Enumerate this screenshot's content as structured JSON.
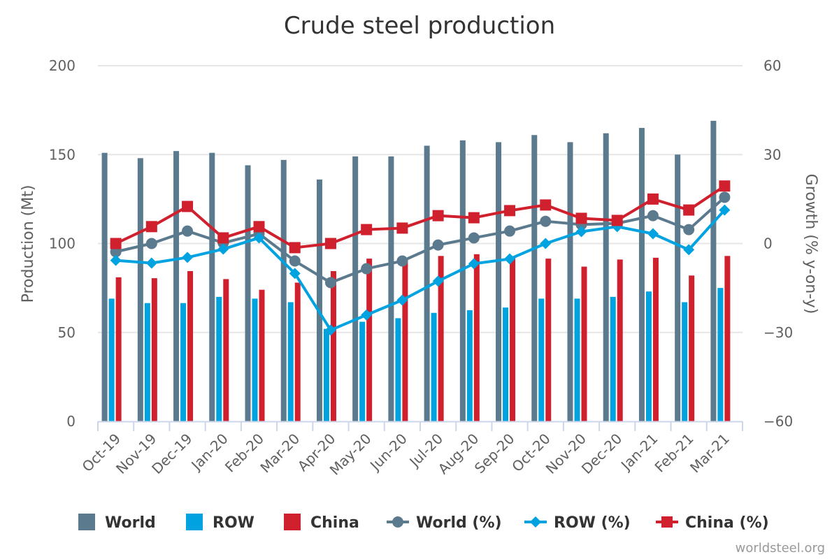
{
  "chart_data": {
    "type": "bar",
    "title": "Crude steel production",
    "xlabel": "",
    "ylabel": "Production (Mt)",
    "ylabel_right": "Growth (% y-on-y)",
    "ylim": [
      0,
      200
    ],
    "ylim_right": [
      -60,
      60
    ],
    "yticks": [
      "0",
      "50",
      "100",
      "150",
      "200"
    ],
    "yticks_right": [
      "−60",
      "−30",
      "0",
      "30",
      "60"
    ],
    "yticks_values": [
      0,
      50,
      100,
      150,
      200
    ],
    "yticks_right_values": [
      -60,
      -30,
      0,
      30,
      60
    ],
    "grid": true,
    "legend_position": "bottom",
    "categories": [
      "Oct-19",
      "Nov-19",
      "Dec-19",
      "Jan-20",
      "Feb-20",
      "Mar-20",
      "Apr-20",
      "May-20",
      "Jun-20",
      "Jul-20",
      "Aug-20",
      "Sep-20",
      "Oct-20",
      "Nov-20",
      "Dec-20",
      "Jan-21",
      "Feb-21",
      "Mar-21"
    ],
    "series": [
      {
        "name": "World",
        "type": "bar",
        "axis": "left",
        "color": "#5c7a8e",
        "values": [
          151,
          148,
          152,
          151,
          144,
          147,
          136,
          149,
          149,
          155,
          158,
          157,
          161,
          157,
          162,
          165,
          150,
          169
        ]
      },
      {
        "name": "ROW",
        "type": "bar",
        "axis": "left",
        "color": "#00a3e0",
        "values": [
          69,
          66.5,
          66.5,
          70,
          69,
          67,
          52,
          56,
          58,
          61,
          62.5,
          64,
          69,
          69,
          70,
          73,
          67,
          75
        ]
      },
      {
        "name": "China",
        "type": "bar",
        "axis": "left",
        "color": "#d0202e",
        "values": [
          81,
          80.5,
          84.5,
          80,
          74,
          78,
          84.5,
          91.5,
          91,
          93,
          94,
          92,
          91.5,
          87,
          91,
          92,
          82,
          93
        ]
      },
      {
        "name": "World (%)",
        "type": "line",
        "axis": "right",
        "color": "#5c7a8e",
        "marker": "circle",
        "values": [
          -2.8,
          0,
          4.2,
          0.2,
          3.3,
          -5.9,
          -13.2,
          -8.5,
          -5.9,
          -0.5,
          1.9,
          4.2,
          7.5,
          6.4,
          6.8,
          9.4,
          4.7,
          15.6
        ]
      },
      {
        "name": "ROW (%)",
        "type": "line",
        "axis": "right",
        "color": "#00a3e0",
        "marker": "diamond",
        "values": [
          -5.7,
          -6.6,
          -4.7,
          -1.9,
          1.9,
          -10.1,
          -29.2,
          -24.1,
          -19.1,
          -12.7,
          -6.8,
          -5.2,
          0,
          4,
          5.7,
          3.3,
          -2.1,
          11.3
        ]
      },
      {
        "name": "China (%)",
        "type": "line",
        "axis": "right",
        "color": "#d0202e",
        "marker": "square",
        "values": [
          0,
          5.7,
          12.5,
          1.9,
          5.7,
          -1.4,
          0,
          4.7,
          5.2,
          9.4,
          8.7,
          11.1,
          13,
          8.5,
          7.8,
          15,
          11.3,
          19.4
        ]
      }
    ]
  },
  "credit": "worldsteel.org"
}
